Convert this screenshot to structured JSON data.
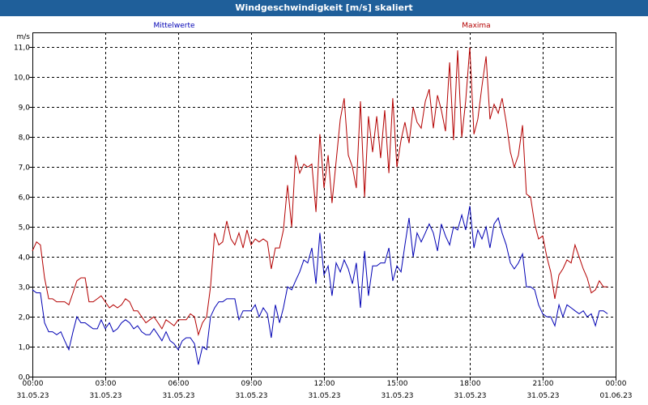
{
  "window": {
    "title": "Windgeschwindigkeit [m/s] skaliert"
  },
  "chart_data": {
    "type": "line",
    "title": "Windgeschwindigkeit [m/s] skaliert",
    "ylabel": "m/s",
    "ylim": [
      0,
      11.5
    ],
    "xlim_hours": [
      0,
      24
    ],
    "grid": true,
    "y_ticks": [
      {
        "value": 0,
        "label": "0,0"
      },
      {
        "value": 1,
        "label": "1,0"
      },
      {
        "value": 2,
        "label": "2,0"
      },
      {
        "value": 3,
        "label": "3,0"
      },
      {
        "value": 4,
        "label": "4,0"
      },
      {
        "value": 5,
        "label": "5,0"
      },
      {
        "value": 6,
        "label": "6,0"
      },
      {
        "value": 7,
        "label": "7,0"
      },
      {
        "value": 8,
        "label": "8,0"
      },
      {
        "value": 9,
        "label": "9,0"
      },
      {
        "value": 10,
        "label": "10,0"
      },
      {
        "value": 11,
        "label": "11,0"
      }
    ],
    "x_ticks": [
      {
        "hour": 0,
        "time": "00:00",
        "date": "31.05.23"
      },
      {
        "hour": 3,
        "time": "03:00",
        "date": "31.05.23"
      },
      {
        "hour": 6,
        "time": "06:00",
        "date": "31.05.23"
      },
      {
        "hour": 9,
        "time": "09:00",
        "date": "31.05.23"
      },
      {
        "hour": 12,
        "time": "12:00",
        "date": "31.05.23"
      },
      {
        "hour": 15,
        "time": "15:00",
        "date": "31.05.23"
      },
      {
        "hour": 18,
        "time": "18:00",
        "date": "31.05.23"
      },
      {
        "hour": 21,
        "time": "21:00",
        "date": "31.05.23"
      },
      {
        "hour": 24,
        "time": "00:00",
        "date": "01.06.23"
      }
    ],
    "series": [
      {
        "name": "Mittelwerte",
        "color": "#0000b4",
        "points": [
          [
            0.0,
            2.9
          ],
          [
            0.17,
            2.8
          ],
          [
            0.33,
            2.8
          ],
          [
            0.5,
            1.8
          ],
          [
            0.67,
            1.5
          ],
          [
            0.83,
            1.5
          ],
          [
            1.0,
            1.4
          ],
          [
            1.17,
            1.5
          ],
          [
            1.33,
            1.2
          ],
          [
            1.5,
            0.9
          ],
          [
            1.67,
            1.5
          ],
          [
            1.83,
            2.0
          ],
          [
            2.0,
            1.8
          ],
          [
            2.17,
            1.8
          ],
          [
            2.33,
            1.7
          ],
          [
            2.5,
            1.6
          ],
          [
            2.67,
            1.6
          ],
          [
            2.83,
            1.9
          ],
          [
            3.0,
            1.6
          ],
          [
            3.17,
            1.8
          ],
          [
            3.33,
            1.5
          ],
          [
            3.5,
            1.6
          ],
          [
            3.67,
            1.8
          ],
          [
            3.83,
            1.9
          ],
          [
            4.0,
            1.8
          ],
          [
            4.17,
            1.6
          ],
          [
            4.33,
            1.7
          ],
          [
            4.5,
            1.5
          ],
          [
            4.67,
            1.4
          ],
          [
            4.83,
            1.4
          ],
          [
            5.0,
            1.6
          ],
          [
            5.17,
            1.4
          ],
          [
            5.33,
            1.2
          ],
          [
            5.5,
            1.5
          ],
          [
            5.67,
            1.2
          ],
          [
            5.83,
            1.1
          ],
          [
            6.0,
            0.9
          ],
          [
            6.17,
            1.2
          ],
          [
            6.33,
            1.3
          ],
          [
            6.5,
            1.3
          ],
          [
            6.67,
            1.1
          ],
          [
            6.83,
            0.4
          ],
          [
            7.0,
            1.0
          ],
          [
            7.17,
            0.9
          ],
          [
            7.33,
            2.0
          ],
          [
            7.5,
            2.3
          ],
          [
            7.67,
            2.5
          ],
          [
            7.83,
            2.5
          ],
          [
            8.0,
            2.6
          ],
          [
            8.17,
            2.6
          ],
          [
            8.33,
            2.6
          ],
          [
            8.5,
            1.9
          ],
          [
            8.67,
            2.2
          ],
          [
            8.83,
            2.2
          ],
          [
            9.0,
            2.2
          ],
          [
            9.17,
            2.4
          ],
          [
            9.33,
            2.0
          ],
          [
            9.5,
            2.3
          ],
          [
            9.67,
            2.1
          ],
          [
            9.83,
            1.3
          ],
          [
            10.0,
            2.4
          ],
          [
            10.17,
            1.8
          ],
          [
            10.33,
            2.3
          ],
          [
            10.5,
            3.0
          ],
          [
            10.67,
            2.9
          ],
          [
            10.83,
            3.2
          ],
          [
            11.0,
            3.5
          ],
          [
            11.17,
            3.9
          ],
          [
            11.33,
            3.8
          ],
          [
            11.5,
            4.3
          ],
          [
            11.67,
            3.1
          ],
          [
            11.83,
            4.8
          ],
          [
            12.0,
            3.4
          ],
          [
            12.17,
            3.7
          ],
          [
            12.33,
            2.7
          ],
          [
            12.5,
            3.8
          ],
          [
            12.67,
            3.5
          ],
          [
            12.83,
            3.9
          ],
          [
            13.0,
            3.6
          ],
          [
            13.17,
            3.1
          ],
          [
            13.33,
            3.8
          ],
          [
            13.5,
            2.3
          ],
          [
            13.67,
            4.2
          ],
          [
            13.83,
            2.7
          ],
          [
            14.0,
            3.7
          ],
          [
            14.17,
            3.7
          ],
          [
            14.33,
            3.8
          ],
          [
            14.5,
            3.8
          ],
          [
            14.67,
            4.3
          ],
          [
            14.83,
            3.2
          ],
          [
            15.0,
            3.7
          ],
          [
            15.17,
            3.5
          ],
          [
            15.33,
            4.4
          ],
          [
            15.5,
            5.3
          ],
          [
            15.67,
            4.0
          ],
          [
            15.83,
            4.8
          ],
          [
            16.0,
            4.5
          ],
          [
            16.17,
            4.8
          ],
          [
            16.33,
            5.1
          ],
          [
            16.5,
            4.8
          ],
          [
            16.67,
            4.2
          ],
          [
            16.83,
            5.1
          ],
          [
            17.0,
            4.7
          ],
          [
            17.17,
            4.4
          ],
          [
            17.33,
            5.0
          ],
          [
            17.5,
            4.9
          ],
          [
            17.67,
            5.4
          ],
          [
            17.83,
            4.9
          ],
          [
            18.0,
            5.7
          ],
          [
            18.17,
            4.3
          ],
          [
            18.33,
            4.9
          ],
          [
            18.5,
            4.6
          ],
          [
            18.67,
            5.0
          ],
          [
            18.83,
            4.3
          ],
          [
            19.0,
            5.1
          ],
          [
            19.17,
            5.3
          ],
          [
            19.33,
            4.8
          ],
          [
            19.5,
            4.4
          ],
          [
            19.67,
            3.8
          ],
          [
            19.83,
            3.6
          ],
          [
            20.0,
            3.8
          ],
          [
            20.17,
            4.1
          ],
          [
            20.33,
            3.0
          ],
          [
            20.5,
            3.0
          ],
          [
            20.67,
            2.9
          ],
          [
            20.83,
            2.4
          ],
          [
            21.0,
            2.1
          ],
          [
            21.17,
            2.0
          ],
          [
            21.33,
            2.0
          ],
          [
            21.5,
            1.7
          ],
          [
            21.67,
            2.4
          ],
          [
            21.83,
            2.0
          ],
          [
            22.0,
            2.4
          ],
          [
            22.17,
            2.3
          ],
          [
            22.33,
            2.2
          ],
          [
            22.5,
            2.1
          ],
          [
            22.67,
            2.2
          ],
          [
            22.83,
            2.0
          ],
          [
            23.0,
            2.1
          ],
          [
            23.17,
            1.7
          ],
          [
            23.33,
            2.2
          ],
          [
            23.5,
            2.2
          ],
          [
            23.67,
            2.1
          ]
        ]
      },
      {
        "name": "Maxima",
        "color": "#b40000",
        "points": [
          [
            0.0,
            4.2
          ],
          [
            0.17,
            4.5
          ],
          [
            0.33,
            4.4
          ],
          [
            0.5,
            3.3
          ],
          [
            0.67,
            2.6
          ],
          [
            0.83,
            2.6
          ],
          [
            1.0,
            2.5
          ],
          [
            1.17,
            2.5
          ],
          [
            1.33,
            2.5
          ],
          [
            1.5,
            2.4
          ],
          [
            1.67,
            2.8
          ],
          [
            1.83,
            3.2
          ],
          [
            2.0,
            3.3
          ],
          [
            2.17,
            3.3
          ],
          [
            2.33,
            2.5
          ],
          [
            2.5,
            2.5
          ],
          [
            2.67,
            2.6
          ],
          [
            2.83,
            2.7
          ],
          [
            3.0,
            2.5
          ],
          [
            3.17,
            2.3
          ],
          [
            3.33,
            2.4
          ],
          [
            3.5,
            2.3
          ],
          [
            3.67,
            2.4
          ],
          [
            3.83,
            2.6
          ],
          [
            4.0,
            2.5
          ],
          [
            4.17,
            2.2
          ],
          [
            4.33,
            2.2
          ],
          [
            4.5,
            2.0
          ],
          [
            4.67,
            1.8
          ],
          [
            4.83,
            1.9
          ],
          [
            5.0,
            2.0
          ],
          [
            5.17,
            1.8
          ],
          [
            5.33,
            1.6
          ],
          [
            5.5,
            1.9
          ],
          [
            5.67,
            1.8
          ],
          [
            5.83,
            1.7
          ],
          [
            6.0,
            1.9
          ],
          [
            6.17,
            1.9
          ],
          [
            6.33,
            1.9
          ],
          [
            6.5,
            2.1
          ],
          [
            6.67,
            2.0
          ],
          [
            6.83,
            1.4
          ],
          [
            7.0,
            1.8
          ],
          [
            7.17,
            2.0
          ],
          [
            7.33,
            3.0
          ],
          [
            7.5,
            4.8
          ],
          [
            7.67,
            4.4
          ],
          [
            7.83,
            4.5
          ],
          [
            8.0,
            5.2
          ],
          [
            8.17,
            4.6
          ],
          [
            8.33,
            4.4
          ],
          [
            8.5,
            4.8
          ],
          [
            8.67,
            4.3
          ],
          [
            8.83,
            4.9
          ],
          [
            9.0,
            4.4
          ],
          [
            9.17,
            4.6
          ],
          [
            9.33,
            4.5
          ],
          [
            9.5,
            4.6
          ],
          [
            9.67,
            4.5
          ],
          [
            9.83,
            3.6
          ],
          [
            10.0,
            4.3
          ],
          [
            10.17,
            4.3
          ],
          [
            10.33,
            4.9
          ],
          [
            10.5,
            6.4
          ],
          [
            10.67,
            5.0
          ],
          [
            10.83,
            7.4
          ],
          [
            11.0,
            6.8
          ],
          [
            11.17,
            7.1
          ],
          [
            11.33,
            7.0
          ],
          [
            11.5,
            7.1
          ],
          [
            11.67,
            5.5
          ],
          [
            11.83,
            8.1
          ],
          [
            12.0,
            6.3
          ],
          [
            12.17,
            7.4
          ],
          [
            12.33,
            5.8
          ],
          [
            12.5,
            7.2
          ],
          [
            12.67,
            8.6
          ],
          [
            12.83,
            9.3
          ],
          [
            13.0,
            7.4
          ],
          [
            13.17,
            7.0
          ],
          [
            13.33,
            6.3
          ],
          [
            13.5,
            9.2
          ],
          [
            13.67,
            6.0
          ],
          [
            13.83,
            8.7
          ],
          [
            14.0,
            7.5
          ],
          [
            14.17,
            8.7
          ],
          [
            14.33,
            7.3
          ],
          [
            14.5,
            8.9
          ],
          [
            14.67,
            6.8
          ],
          [
            14.83,
            9.3
          ],
          [
            15.0,
            7.0
          ],
          [
            15.17,
            7.9
          ],
          [
            15.33,
            8.5
          ],
          [
            15.5,
            7.8
          ],
          [
            15.67,
            9.0
          ],
          [
            15.83,
            8.5
          ],
          [
            16.0,
            8.3
          ],
          [
            16.17,
            9.2
          ],
          [
            16.33,
            9.6
          ],
          [
            16.5,
            8.3
          ],
          [
            16.67,
            9.4
          ],
          [
            16.83,
            8.9
          ],
          [
            17.0,
            8.2
          ],
          [
            17.17,
            10.5
          ],
          [
            17.33,
            7.9
          ],
          [
            17.5,
            10.9
          ],
          [
            17.67,
            8.0
          ],
          [
            17.83,
            9.2
          ],
          [
            18.0,
            11.0
          ],
          [
            18.17,
            8.1
          ],
          [
            18.33,
            8.6
          ],
          [
            18.5,
            9.7
          ],
          [
            18.67,
            10.7
          ],
          [
            18.83,
            8.6
          ],
          [
            19.0,
            9.1
          ],
          [
            19.17,
            8.8
          ],
          [
            19.33,
            9.3
          ],
          [
            19.5,
            8.5
          ],
          [
            19.67,
            7.5
          ],
          [
            19.83,
            7.0
          ],
          [
            20.0,
            7.4
          ],
          [
            20.17,
            8.4
          ],
          [
            20.33,
            6.1
          ],
          [
            20.5,
            6.0
          ],
          [
            20.67,
            5.1
          ],
          [
            20.83,
            4.6
          ],
          [
            21.0,
            4.7
          ],
          [
            21.17,
            4.0
          ],
          [
            21.33,
            3.5
          ],
          [
            21.5,
            2.6
          ],
          [
            21.67,
            3.4
          ],
          [
            21.83,
            3.6
          ],
          [
            22.0,
            3.9
          ],
          [
            22.17,
            3.8
          ],
          [
            22.33,
            4.4
          ],
          [
            22.5,
            4.0
          ],
          [
            22.67,
            3.6
          ],
          [
            22.83,
            3.3
          ],
          [
            23.0,
            2.8
          ],
          [
            23.17,
            2.9
          ],
          [
            23.33,
            3.2
          ],
          [
            23.5,
            3.0
          ],
          [
            23.67,
            3.0
          ]
        ]
      }
    ]
  }
}
